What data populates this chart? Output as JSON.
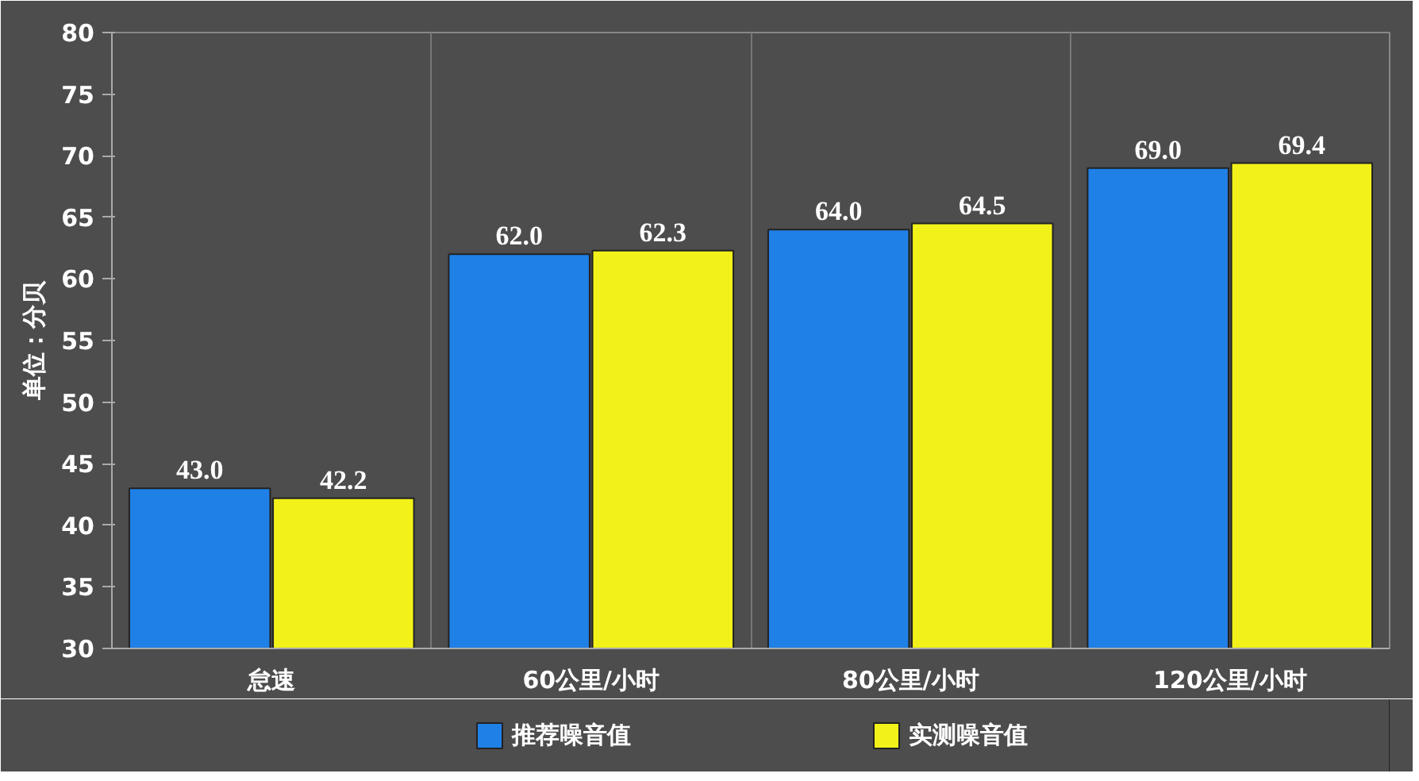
{
  "chart_data": {
    "type": "bar",
    "ylabel": "单位：分贝",
    "categories": [
      "怠速",
      "60公里/小时",
      "80公里/小时",
      "120公里/小时"
    ],
    "series": [
      {
        "name": "推荐噪音值",
        "color": "#1f80e6",
        "values": [
          43.0,
          62.0,
          64.0,
          69.0
        ],
        "value_labels": [
          "43.0",
          "62.0",
          "64.0",
          "69.0"
        ]
      },
      {
        "name": "实测噪音值",
        "color": "#f2f21a",
        "values": [
          42.2,
          62.3,
          64.5,
          69.4
        ],
        "value_labels": [
          "42.2",
          "62.3",
          "64.5",
          "69.4"
        ]
      }
    ],
    "ylim": [
      30,
      80
    ],
    "yticks": [
      30,
      35,
      40,
      45,
      50,
      55,
      60,
      65,
      70,
      75,
      80
    ],
    "grid": "x",
    "legend": "bottom"
  }
}
